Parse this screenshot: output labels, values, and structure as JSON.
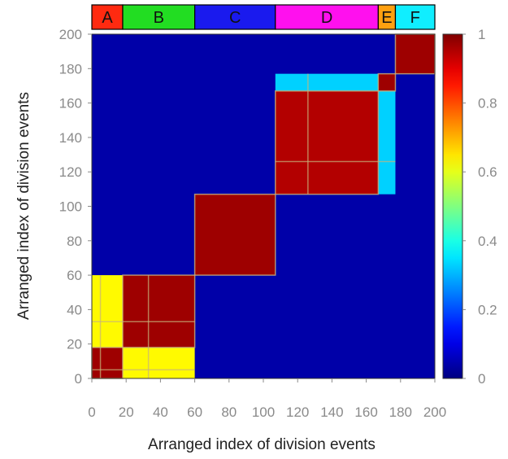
{
  "chart_data": {
    "type": "heatmap",
    "xlabel": "Arranged index of division events",
    "ylabel": "Arranged index of division events",
    "xlim": [
      0,
      200
    ],
    "ylim": [
      0,
      200
    ],
    "xticks": [
      "0",
      "20",
      "40",
      "60",
      "80",
      "100",
      "120",
      "140",
      "160",
      "180",
      "200"
    ],
    "yticks": [
      "0",
      "20",
      "40",
      "60",
      "80",
      "100",
      "120",
      "140",
      "160",
      "180",
      "200"
    ],
    "colorbar": {
      "min": 0,
      "max": 1,
      "ticks": [
        "0",
        "0.2",
        "0.4",
        "0.6",
        "0.8",
        "1"
      ],
      "colormap": "jet"
    },
    "background_value": 0.04,
    "clusters": [
      {
        "label": "A",
        "start": 0,
        "end": 18,
        "color": "#ff2a10"
      },
      {
        "label": "B",
        "start": 18,
        "end": 60,
        "color": "#22dd22"
      },
      {
        "label": "C",
        "start": 60,
        "end": 107,
        "color": "#1a1aee"
      },
      {
        "label": "D",
        "start": 107,
        "end": 167,
        "color": "#ff10ee"
      },
      {
        "label": "E",
        "start": 167,
        "end": 177,
        "color": "#ffa010"
      },
      {
        "label": "F",
        "start": 177,
        "end": 200,
        "color": "#10eeff"
      }
    ],
    "blocks": [
      {
        "x": [
          0,
          18
        ],
        "y": [
          0,
          18
        ],
        "value": 0.97
      },
      {
        "x": [
          18,
          60
        ],
        "y": [
          18,
          60
        ],
        "value": 0.97
      },
      {
        "x": [
          0,
          18
        ],
        "y": [
          18,
          60
        ],
        "value": 0.63
      },
      {
        "x": [
          18,
          60
        ],
        "y": [
          0,
          18
        ],
        "value": 0.63
      },
      {
        "x": [
          60,
          107
        ],
        "y": [
          60,
          107
        ],
        "value": 0.97
      },
      {
        "x": [
          107,
          167
        ],
        "y": [
          107,
          167
        ],
        "value": 0.95
      },
      {
        "x": [
          167,
          177
        ],
        "y": [
          167,
          177
        ],
        "value": 0.97
      },
      {
        "x": [
          107,
          167
        ],
        "y": [
          167,
          177
        ],
        "value": 0.33
      },
      {
        "x": [
          167,
          177
        ],
        "y": [
          107,
          167
        ],
        "value": 0.33
      },
      {
        "x": [
          177,
          200
        ],
        "y": [
          177,
          200
        ],
        "value": 0.97
      }
    ],
    "separator_lines": [
      5,
      33,
      126
    ]
  }
}
